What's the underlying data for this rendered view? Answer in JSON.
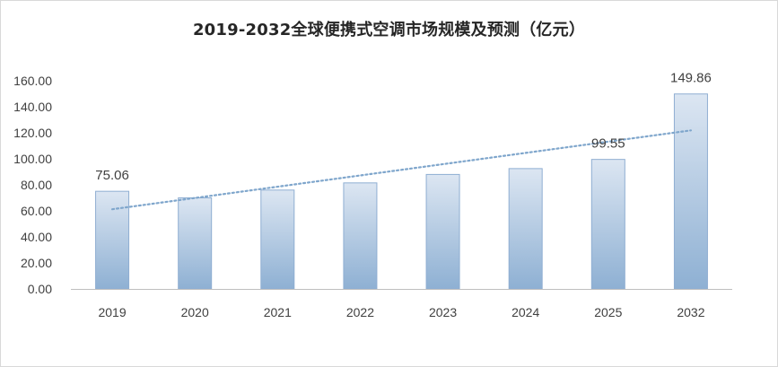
{
  "chart_data": {
    "type": "bar",
    "title": "2019-2032全球便携式空调市场规模及预测（亿元）",
    "categories": [
      "2019",
      "2020",
      "2021",
      "2022",
      "2023",
      "2024",
      "2025",
      "2032"
    ],
    "values": [
      75.06,
      70.0,
      76.0,
      81.5,
      88.0,
      92.5,
      99.55,
      149.86
    ],
    "data_labels": [
      {
        "index": 0,
        "text": "75.06"
      },
      {
        "index": 6,
        "text": "99.55"
      },
      {
        "index": 7,
        "text": "149.86"
      }
    ],
    "ylim": [
      0,
      160
    ],
    "yticks": [
      "0.00",
      "20.00",
      "40.00",
      "60.00",
      "80.00",
      "100.00",
      "120.00",
      "140.00",
      "160.00"
    ],
    "xlabel": "",
    "ylabel": "",
    "grid": false,
    "legend": "none",
    "trendline": {
      "type": "linear",
      "style": "dotted"
    },
    "colors": {
      "bar_top": "#dce6f2",
      "bar_bottom": "#8eb0d3",
      "bar_border": "#8faed2",
      "trendline": "#7fa6cc",
      "axis": "#bfbfbf",
      "text": "#404040"
    }
  }
}
